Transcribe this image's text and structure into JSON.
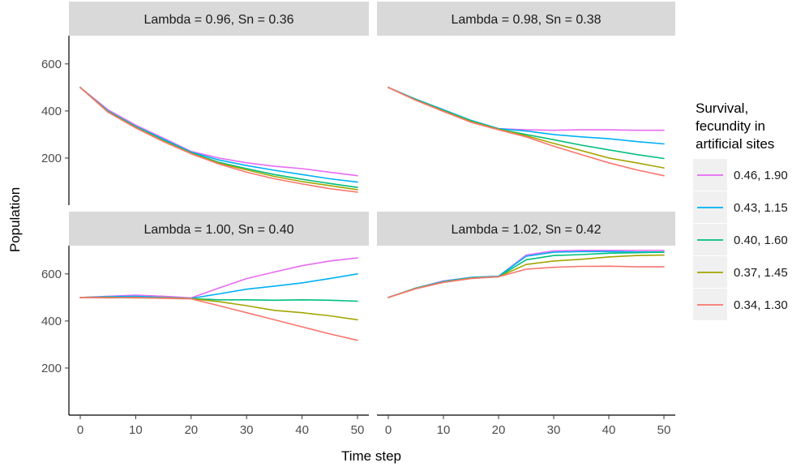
{
  "chart_data": {
    "type": "line",
    "xlabel": "Time step",
    "ylabel": "Population",
    "xlim": [
      0,
      50
    ],
    "ylim": [
      0,
      720
    ],
    "x_ticks": [
      0,
      10,
      20,
      30,
      40,
      50
    ],
    "y_ticks": [
      200,
      400,
      600
    ],
    "grid": false,
    "legend": {
      "title": [
        "Survival,",
        "fecundity in",
        "artificial sites"
      ],
      "placement": "right",
      "entries": [
        {
          "label": "0.46, 1.90",
          "color": "#E76BF3"
        },
        {
          "label": "0.43, 1.15",
          "color": "#00B0F6"
        },
        {
          "label": "0.40, 1.60",
          "color": "#00BF7D"
        },
        {
          "label": "0.37, 1.45",
          "color": "#A3A500"
        },
        {
          "label": "0.34, 1.30",
          "color": "#F8766D"
        }
      ]
    },
    "x": [
      0,
      5,
      10,
      15,
      20,
      25,
      30,
      35,
      40,
      45,
      50
    ],
    "panels": [
      {
        "title": "Lambda = 0.96, Sn = 0.36",
        "series": [
          {
            "name": "0.46, 1.90",
            "values": [
              500,
              405,
              340,
              285,
              228,
              200,
              180,
              165,
              155,
              140,
              125
            ]
          },
          {
            "name": "0.43, 1.15",
            "values": [
              500,
              400,
              335,
              280,
              225,
              192,
              168,
              148,
              130,
              112,
              98
            ]
          },
          {
            "name": "0.40, 1.60",
            "values": [
              500,
              398,
              332,
              275,
              222,
              182,
              155,
              130,
              110,
              92,
              75
            ]
          },
          {
            "name": "0.37, 1.45",
            "values": [
              500,
              396,
              330,
              272,
              220,
              178,
              150,
              122,
              100,
              83,
              65
            ]
          },
          {
            "name": "0.34, 1.30",
            "values": [
              500,
              395,
              328,
              270,
              218,
              175,
              140,
              112,
              90,
              70,
              55
            ]
          }
        ]
      },
      {
        "title": "Lambda = 0.98, Sn = 0.38",
        "series": [
          {
            "name": "0.46, 1.90",
            "values": [
              500,
              450,
              405,
              360,
              325,
              320,
              318,
              320,
              320,
              318,
              318
            ]
          },
          {
            "name": "0.43, 1.15",
            "values": [
              500,
              450,
              405,
              360,
              325,
              315,
              300,
              290,
              282,
              270,
              260
            ]
          },
          {
            "name": "0.40, 1.60",
            "values": [
              500,
              448,
              402,
              358,
              323,
              300,
              278,
              255,
              235,
              215,
              198
            ]
          },
          {
            "name": "0.37, 1.45",
            "values": [
              500,
              446,
              400,
              355,
              322,
              295,
              262,
              232,
              200,
              180,
              158
            ]
          },
          {
            "name": "0.34, 1.30",
            "values": [
              500,
              445,
              398,
              352,
              320,
              290,
              250,
              215,
              180,
              150,
              125
            ]
          }
        ]
      },
      {
        "title": "Lambda = 1.00, Sn = 0.40",
        "series": [
          {
            "name": "0.46, 1.90",
            "values": [
              500,
              505,
              510,
              505,
              498,
              540,
              580,
              608,
              635,
              655,
              668
            ]
          },
          {
            "name": "0.43, 1.15",
            "values": [
              500,
              503,
              505,
              500,
              496,
              515,
              535,
              548,
              562,
              580,
              600
            ]
          },
          {
            "name": "0.40, 1.60",
            "values": [
              500,
              500,
              500,
              498,
              495,
              490,
              490,
              488,
              490,
              488,
              484
            ]
          },
          {
            "name": "0.37, 1.45",
            "values": [
              500,
              500,
              498,
              498,
              495,
              482,
              465,
              445,
              435,
              422,
              405
            ]
          },
          {
            "name": "0.34, 1.30",
            "values": [
              500,
              498,
              500,
              496,
              494,
              465,
              435,
              405,
              375,
              345,
              318
            ]
          }
        ]
      },
      {
        "title": "Lambda = 1.02, Sn = 0.42",
        "series": [
          {
            "name": "0.46, 1.90",
            "values": [
              500,
              540,
              570,
              585,
              590,
              680,
              698,
              700,
              700,
              700,
              700
            ]
          },
          {
            "name": "0.43, 1.15",
            "values": [
              500,
              540,
              568,
              585,
              590,
              675,
              692,
              695,
              695,
              693,
              693
            ]
          },
          {
            "name": "0.40, 1.60",
            "values": [
              500,
              538,
              566,
              582,
              588,
              660,
              678,
              682,
              688,
              690,
              692
            ]
          },
          {
            "name": "0.37, 1.45",
            "values": [
              500,
              538,
              565,
              582,
              588,
              640,
              655,
              662,
              672,
              678,
              680
            ]
          },
          {
            "name": "0.34, 1.30",
            "values": [
              500,
              537,
              564,
              580,
              588,
              620,
              628,
              632,
              633,
              630,
              630
            ]
          }
        ]
      }
    ]
  }
}
